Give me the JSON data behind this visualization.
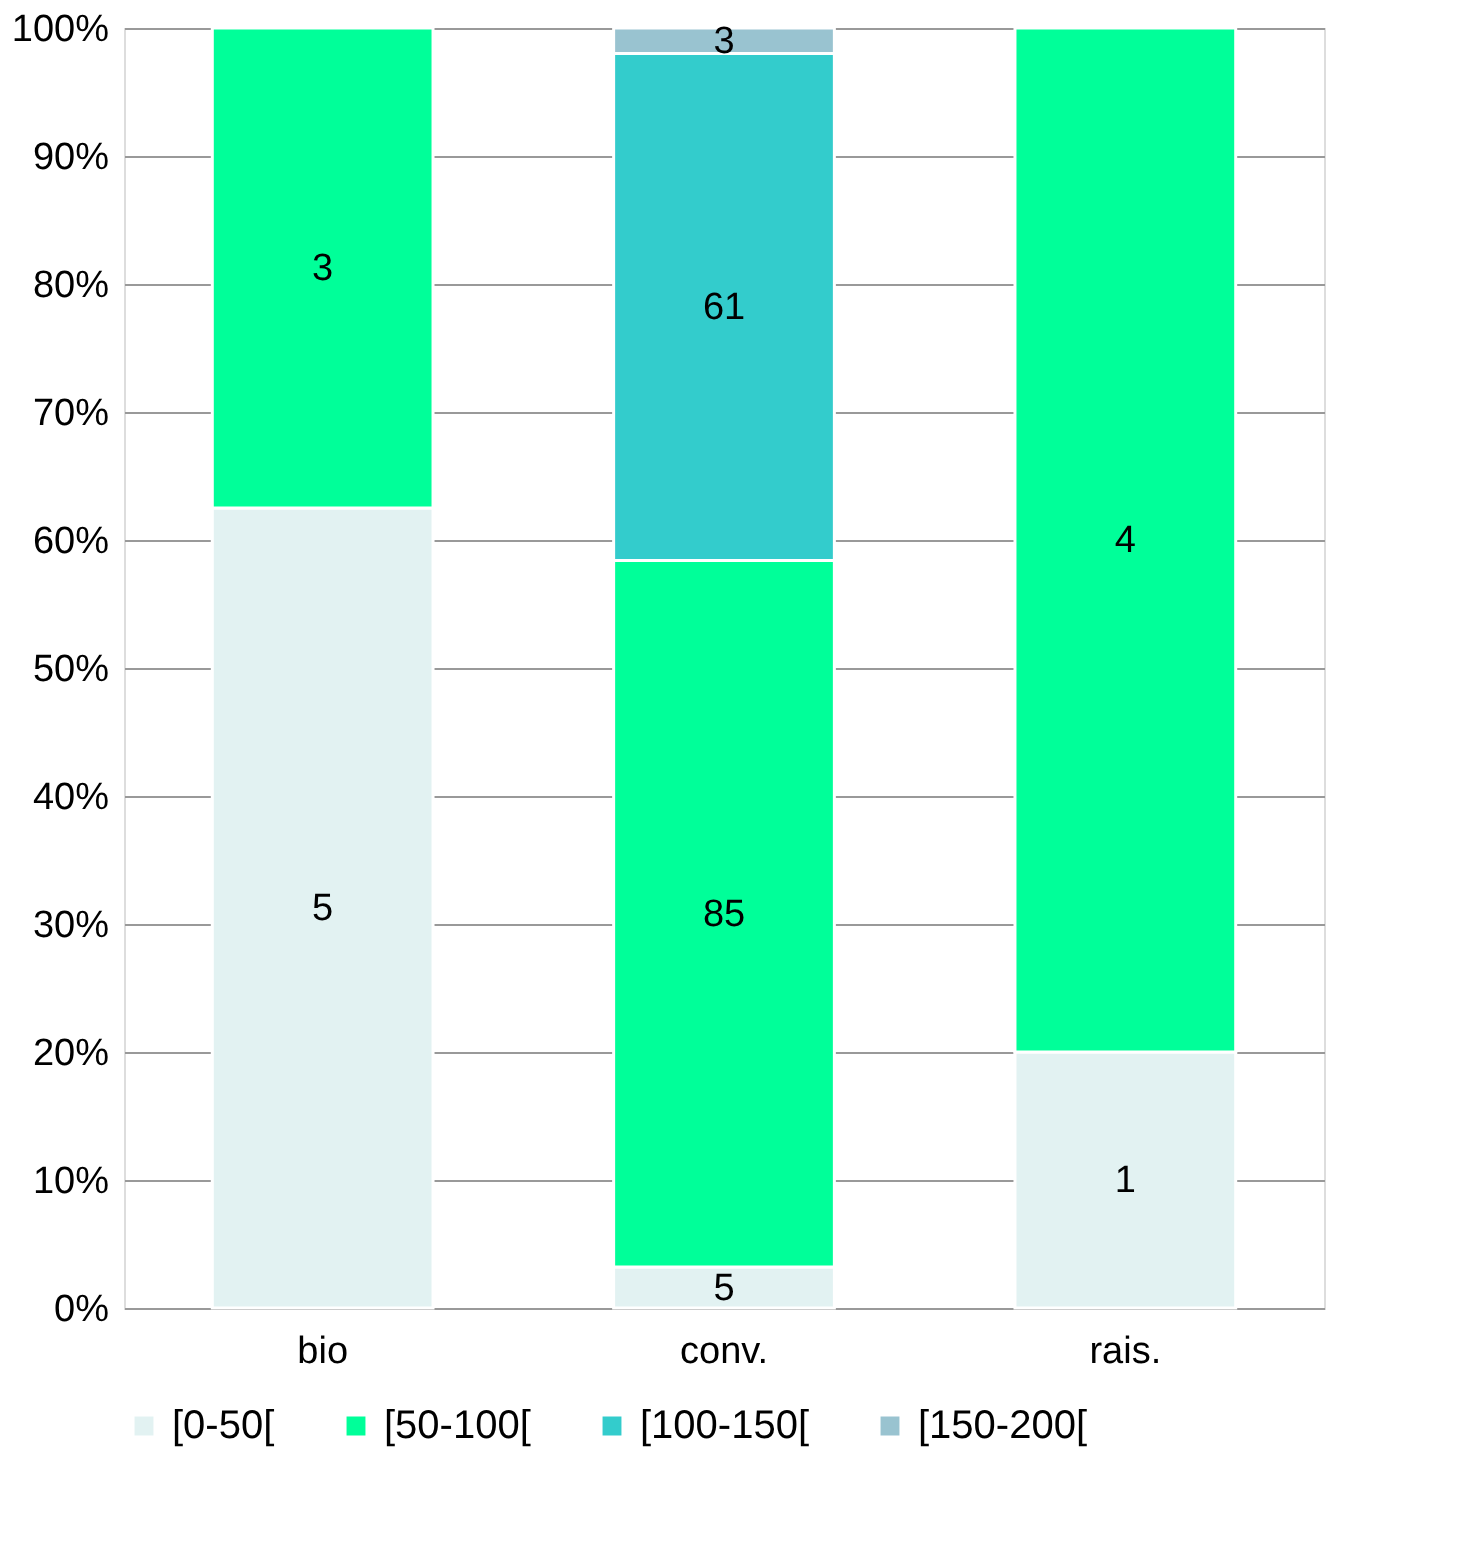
{
  "chart_data": {
    "type": "bar",
    "stacked": true,
    "categories": [
      "bio",
      "conv.",
      "rais."
    ],
    "series": [
      {
        "name": "[0-50[",
        "color": "#e2f2f2",
        "values": [
          62.5,
          3.2,
          20
        ]
      },
      {
        "name": "[50-100[",
        "color": "#00ff99",
        "values": [
          37.5,
          55.2,
          80
        ]
      },
      {
        "name": "[100-150[",
        "color": "#33cccc",
        "values": [
          null,
          39.6,
          null
        ]
      },
      {
        "name": "[150-200[",
        "color": "#99c3d0",
        "values": [
          null,
          2.0,
          null
        ]
      }
    ],
    "annotations": [
      "5",
      "3",
      "5",
      "85",
      "61",
      "3",
      "1",
      "4"
    ],
    "ylim": [
      0,
      100
    ],
    "yticks": [
      {
        "value": 0,
        "label": "0%"
      },
      {
        "value": 10,
        "label": "10%"
      },
      {
        "value": 20,
        "label": "20%"
      },
      {
        "value": 30,
        "label": "30%"
      },
      {
        "value": 40,
        "label": "40%"
      },
      {
        "value": 50,
        "label": "50%"
      },
      {
        "value": 60,
        "label": "60%"
      },
      {
        "value": 70,
        "label": "70%"
      },
      {
        "value": 80,
        "label": "80%"
      },
      {
        "value": 90,
        "label": "90%"
      },
      {
        "value": 100,
        "label": "100%"
      }
    ],
    "grid": "y",
    "legend": "bottom"
  }
}
